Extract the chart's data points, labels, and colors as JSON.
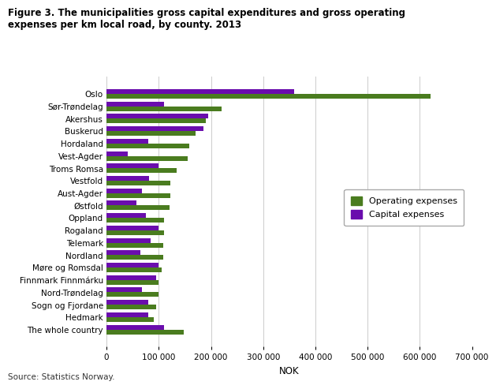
{
  "title": "Figure 3. The municipalities gross capital expenditures and gross operating\nexpenses per km local road, by county. 2013",
  "categories": [
    "Oslo",
    "Sør-Trøndelag",
    "Akershus",
    "Buskerud",
    "Hordaland",
    "Vest-Agder",
    "Troms Romsa",
    "Vestfold",
    "Aust-Agder",
    "Østfold",
    "Oppland",
    "Rogaland",
    "Telemark",
    "Nordland",
    "Møre og Romsdal",
    "Finnmark Finnmárku",
    "Nord-Trøndelag",
    "Sogn og Fjordane",
    "Hedmark",
    "The whole country"
  ],
  "operating_expenses": [
    620000,
    220000,
    190000,
    170000,
    158000,
    155000,
    135000,
    122000,
    122000,
    120000,
    110000,
    110000,
    108000,
    108000,
    105000,
    100000,
    100000,
    95000,
    90000,
    148000
  ],
  "capital_expenses": [
    360000,
    110000,
    195000,
    185000,
    80000,
    40000,
    100000,
    82000,
    68000,
    58000,
    75000,
    100000,
    85000,
    65000,
    100000,
    95000,
    68000,
    80000,
    80000,
    110000
  ],
  "operating_color": "#4a7c1f",
  "capital_color": "#6a0dad",
  "xlabel": "NOK",
  "xlim": [
    0,
    700000
  ],
  "xticks": [
    0,
    100000,
    200000,
    300000,
    400000,
    500000,
    600000,
    700000
  ],
  "xtick_labels": [
    "0",
    "100 000",
    "200 000",
    "300 000",
    "400 000",
    "500 000",
    "600 000",
    "700 000"
  ],
  "legend_labels": [
    "Operating expenses",
    "Capital expenses"
  ],
  "source_text": "Source: Statistics Norway.",
  "background_color": "#ffffff",
  "grid_color": "#cccccc"
}
